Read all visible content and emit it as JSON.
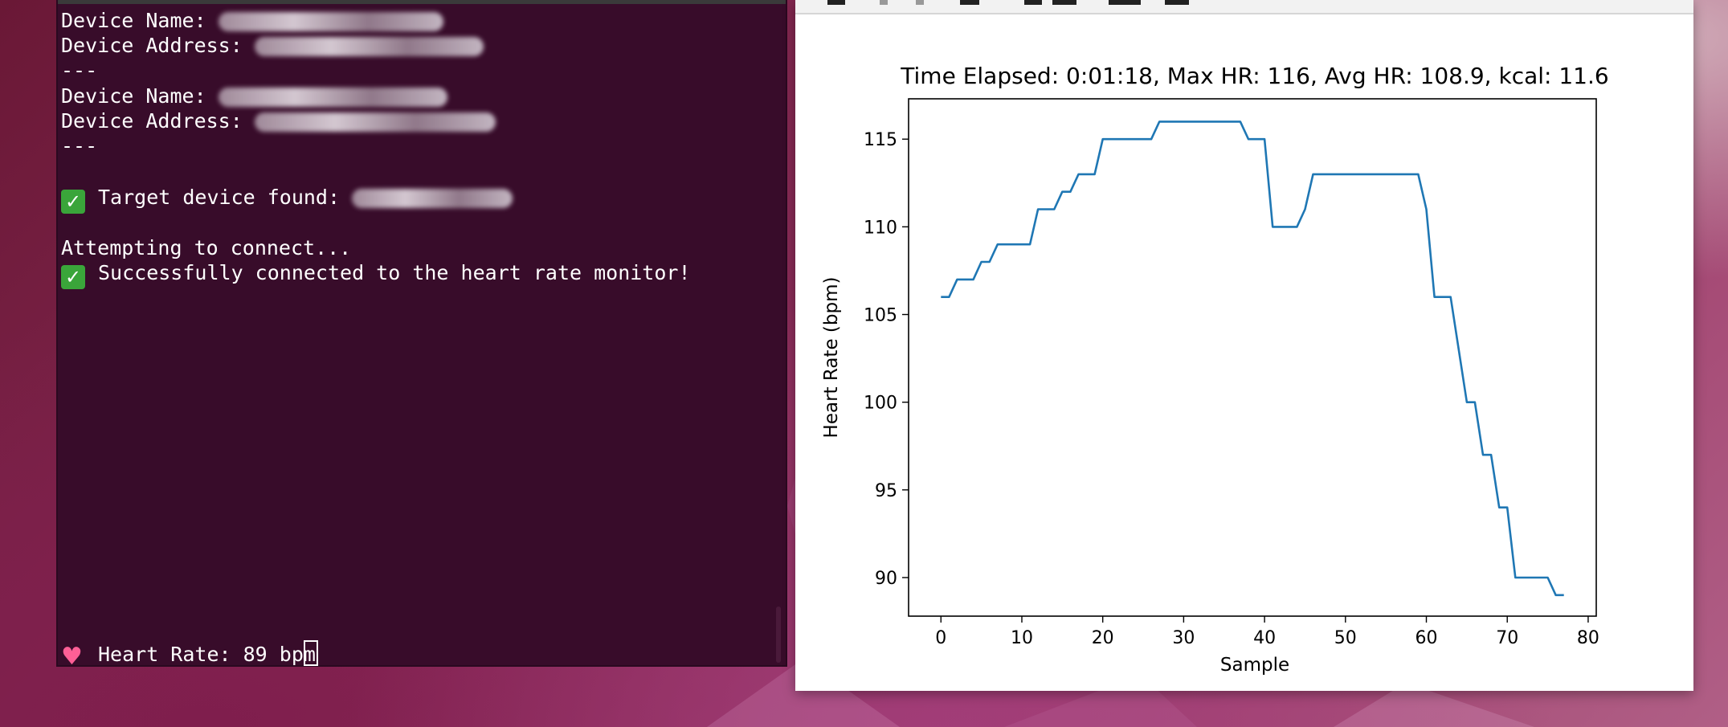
{
  "terminal": {
    "lines": [
      {
        "label": "Device Name: ",
        "value": "5"
      },
      {
        "label": "Device Address: ",
        "value": "5"
      },
      {
        "label": "---"
      },
      {
        "label": "Device Name: ",
        "value": "L"
      },
      {
        "label": "Device Address: ",
        "value": ""
      },
      {
        "label": "---"
      },
      {
        "label": "Target device found: ",
        "value": ""
      },
      {
        "label": "Attempting to connect..."
      },
      {
        "label": "Successfully connected to the heart rate monitor!"
      },
      {
        "label": "Heart Rate: 89 bpm"
      }
    ],
    "check_icon": "white-check-mark-icon",
    "heart_icon": "heart-icon",
    "background_color": "#380c2a",
    "text_color": "#ffffff"
  },
  "plot_window": {
    "toolbar_icons": [
      "home-icon",
      "back-icon",
      "forward-icon",
      "pan-icon",
      "zoom-icon",
      "configure-icon",
      "edit-icon",
      "save-icon"
    ]
  },
  "chart_data": {
    "type": "line",
    "title": "Time Elapsed: 0:01:18, Max HR: 116, Avg HR: 108.9, kcal: 11.6",
    "xlabel": "Sample",
    "ylabel": "Heart Rate (bpm)",
    "xlim": [
      -4,
      81
    ],
    "ylim": [
      87.8,
      117.3
    ],
    "xticks": [
      0,
      10,
      20,
      30,
      40,
      50,
      60,
      70,
      80
    ],
    "yticks": [
      90,
      95,
      100,
      105,
      110,
      115
    ],
    "grid": false,
    "line_color": "#1f77b4",
    "series": [
      {
        "x": [
          0,
          1,
          2,
          3,
          4,
          5,
          6,
          7,
          8,
          9,
          10,
          11,
          12,
          13,
          14,
          15,
          16,
          17,
          18,
          19,
          20,
          21,
          22,
          23,
          24,
          25,
          26,
          27,
          28,
          29,
          30,
          31,
          32,
          33,
          34,
          35,
          36,
          37,
          38,
          39,
          40,
          41,
          42,
          43,
          44,
          45,
          46,
          47,
          48,
          49,
          50,
          51,
          52,
          53,
          54,
          55,
          56,
          57,
          58,
          59,
          60,
          61,
          62,
          63,
          64,
          65,
          66,
          67,
          68,
          69,
          70,
          71,
          72,
          73,
          74,
          75,
          76,
          77
        ],
        "values": [
          106,
          106,
          107,
          107,
          107,
          108,
          108,
          109,
          109,
          109,
          109,
          109,
          111,
          111,
          111,
          112,
          112,
          113,
          113,
          113,
          115,
          115,
          115,
          115,
          115,
          115,
          115,
          116,
          116,
          116,
          116,
          116,
          116,
          116,
          116,
          116,
          116,
          116,
          115,
          115,
          115,
          110,
          110,
          110,
          110,
          111,
          113,
          113,
          113,
          113,
          113,
          113,
          113,
          113,
          113,
          113,
          113,
          113,
          113,
          113,
          111,
          106,
          106,
          106,
          103,
          100,
          100,
          97,
          97,
          94,
          94,
          90,
          90,
          90,
          90,
          90,
          89,
          89
        ]
      }
    ]
  }
}
